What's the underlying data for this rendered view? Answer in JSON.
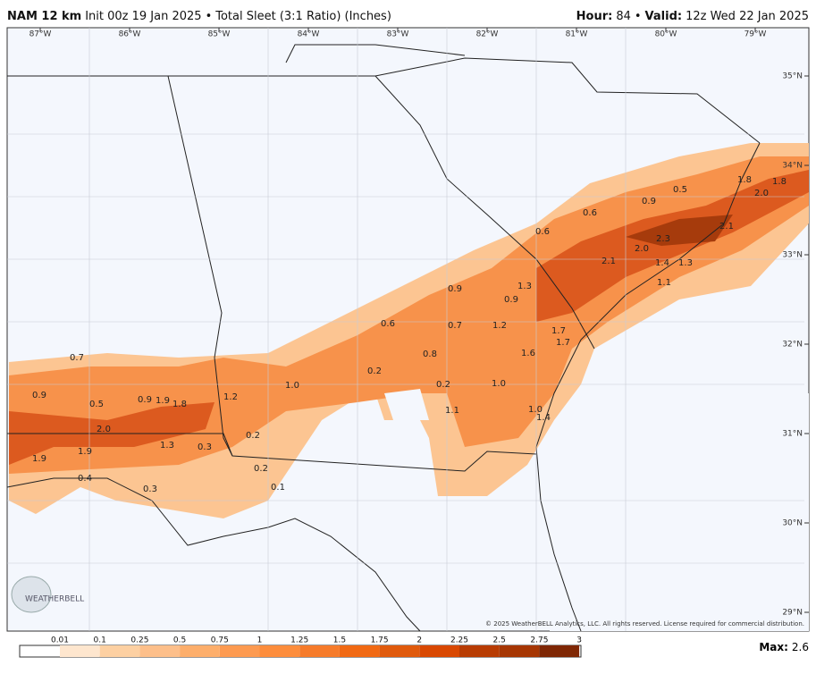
{
  "header": {
    "model": "NAM 12 km",
    "init": "Init 00z 19 Jan 2025",
    "separator": "•",
    "product": "Total Sleet (3:1 Ratio) (Inches)",
    "hour_label": "Hour:",
    "hour": "84",
    "valid_label": "Valid:",
    "valid": "12z Wed 22 Jan 2025"
  },
  "map": {
    "longitudes": [
      "87°W",
      "86°W",
      "85°W",
      "84°W",
      "83°W",
      "82°W",
      "81°W",
      "80°W",
      "79°W"
    ],
    "latitudes": [
      "35°N",
      "34°N",
      "33°N",
      "32°N",
      "31°N",
      "30°N",
      "29°N"
    ],
    "point_labels": [
      "0.7",
      "0.9",
      "0.5",
      "0.9",
      "1.9",
      "1.8",
      "2.0",
      "1.2",
      "1.0",
      "1.9",
      "1.9",
      "1.3",
      "0.3",
      "0.2",
      "0.2",
      "0.1",
      "0.3",
      "0.4",
      "0.6",
      "0.2",
      "0.8",
      "0.2",
      "0.7",
      "0.9",
      "1.1",
      "1.0",
      "1.2",
      "0.9",
      "1.3",
      "1.6",
      "1.7",
      "1.7",
      "1.0",
      "1.4",
      "0.6",
      "0.6",
      "0.9",
      "0.5",
      "2.1",
      "2.0",
      "2.3",
      "1.4",
      "1.3",
      "1.1",
      "2.1",
      "1.8",
      "2.0",
      "1.8"
    ],
    "logo": "WEATHERBELL",
    "copyright": "© 2025 WeatherBELL Analytics, LLC. All rights reserved. License required for commercial distribution."
  },
  "legend": {
    "labels": [
      "0.01",
      "0.1",
      "0.25",
      "0.5",
      "0.75",
      "1",
      "1.25",
      "1.5",
      "1.75",
      "2",
      "2.25",
      "2.5",
      "2.75",
      "3"
    ],
    "max_label": "Max:",
    "max": "2.6"
  }
}
